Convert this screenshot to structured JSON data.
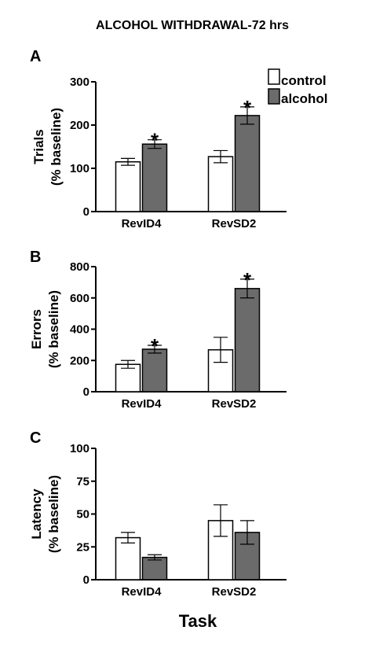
{
  "figure": {
    "title": "ALCOHOL WITHDRAWAL-72 hrs",
    "x_title": "Task",
    "legend": [
      {
        "label": "control",
        "color": "#ffffff"
      },
      {
        "label": "alcohol",
        "color": "#6b6b6b"
      }
    ]
  },
  "chart_data": [
    {
      "panel": "A",
      "type": "bar",
      "ylabel": [
        "Trials",
        "(% baseline)"
      ],
      "ylim": [
        0,
        300
      ],
      "yticks": [
        "0",
        "100",
        "200",
        "300"
      ],
      "categories": [
        "RevID4",
        "RevSD2"
      ],
      "series": [
        {
          "name": "control",
          "values": [
            115,
            127
          ],
          "errors": [
            8,
            14
          ]
        },
        {
          "name": "alcohol",
          "values": [
            156,
            222
          ],
          "errors": [
            10,
            20
          ]
        }
      ],
      "annotations": [
        {
          "category": "RevID4",
          "series": "alcohol",
          "text": "*"
        },
        {
          "category": "RevSD2",
          "series": "alcohol",
          "text": "*"
        }
      ]
    },
    {
      "panel": "B",
      "type": "bar",
      "ylabel": [
        "Errors",
        "(% baseline)"
      ],
      "ylim": [
        0,
        800
      ],
      "yticks": [
        "0",
        "200",
        "400",
        "600",
        "800"
      ],
      "categories": [
        "RevID4",
        "RevSD2"
      ],
      "series": [
        {
          "name": "control",
          "values": [
            175,
            268
          ],
          "errors": [
            25,
            80
          ]
        },
        {
          "name": "alcohol",
          "values": [
            272,
            660
          ],
          "errors": [
            25,
            60
          ]
        }
      ],
      "annotations": [
        {
          "category": "RevID4",
          "series": "alcohol",
          "text": "*"
        },
        {
          "category": "RevSD2",
          "series": "alcohol",
          "text": "*"
        }
      ]
    },
    {
      "panel": "C",
      "type": "bar",
      "ylabel": [
        "Latency",
        "(% baseline)"
      ],
      "ylim": [
        0,
        100
      ],
      "yticks": [
        "0",
        "25",
        "50",
        "75",
        "100"
      ],
      "categories": [
        "RevID4",
        "RevSD2"
      ],
      "series": [
        {
          "name": "control",
          "values": [
            32,
            45
          ],
          "errors": [
            4,
            12
          ]
        },
        {
          "name": "alcohol",
          "values": [
            17,
            36
          ],
          "errors": [
            2,
            9
          ]
        }
      ],
      "annotations": []
    }
  ]
}
